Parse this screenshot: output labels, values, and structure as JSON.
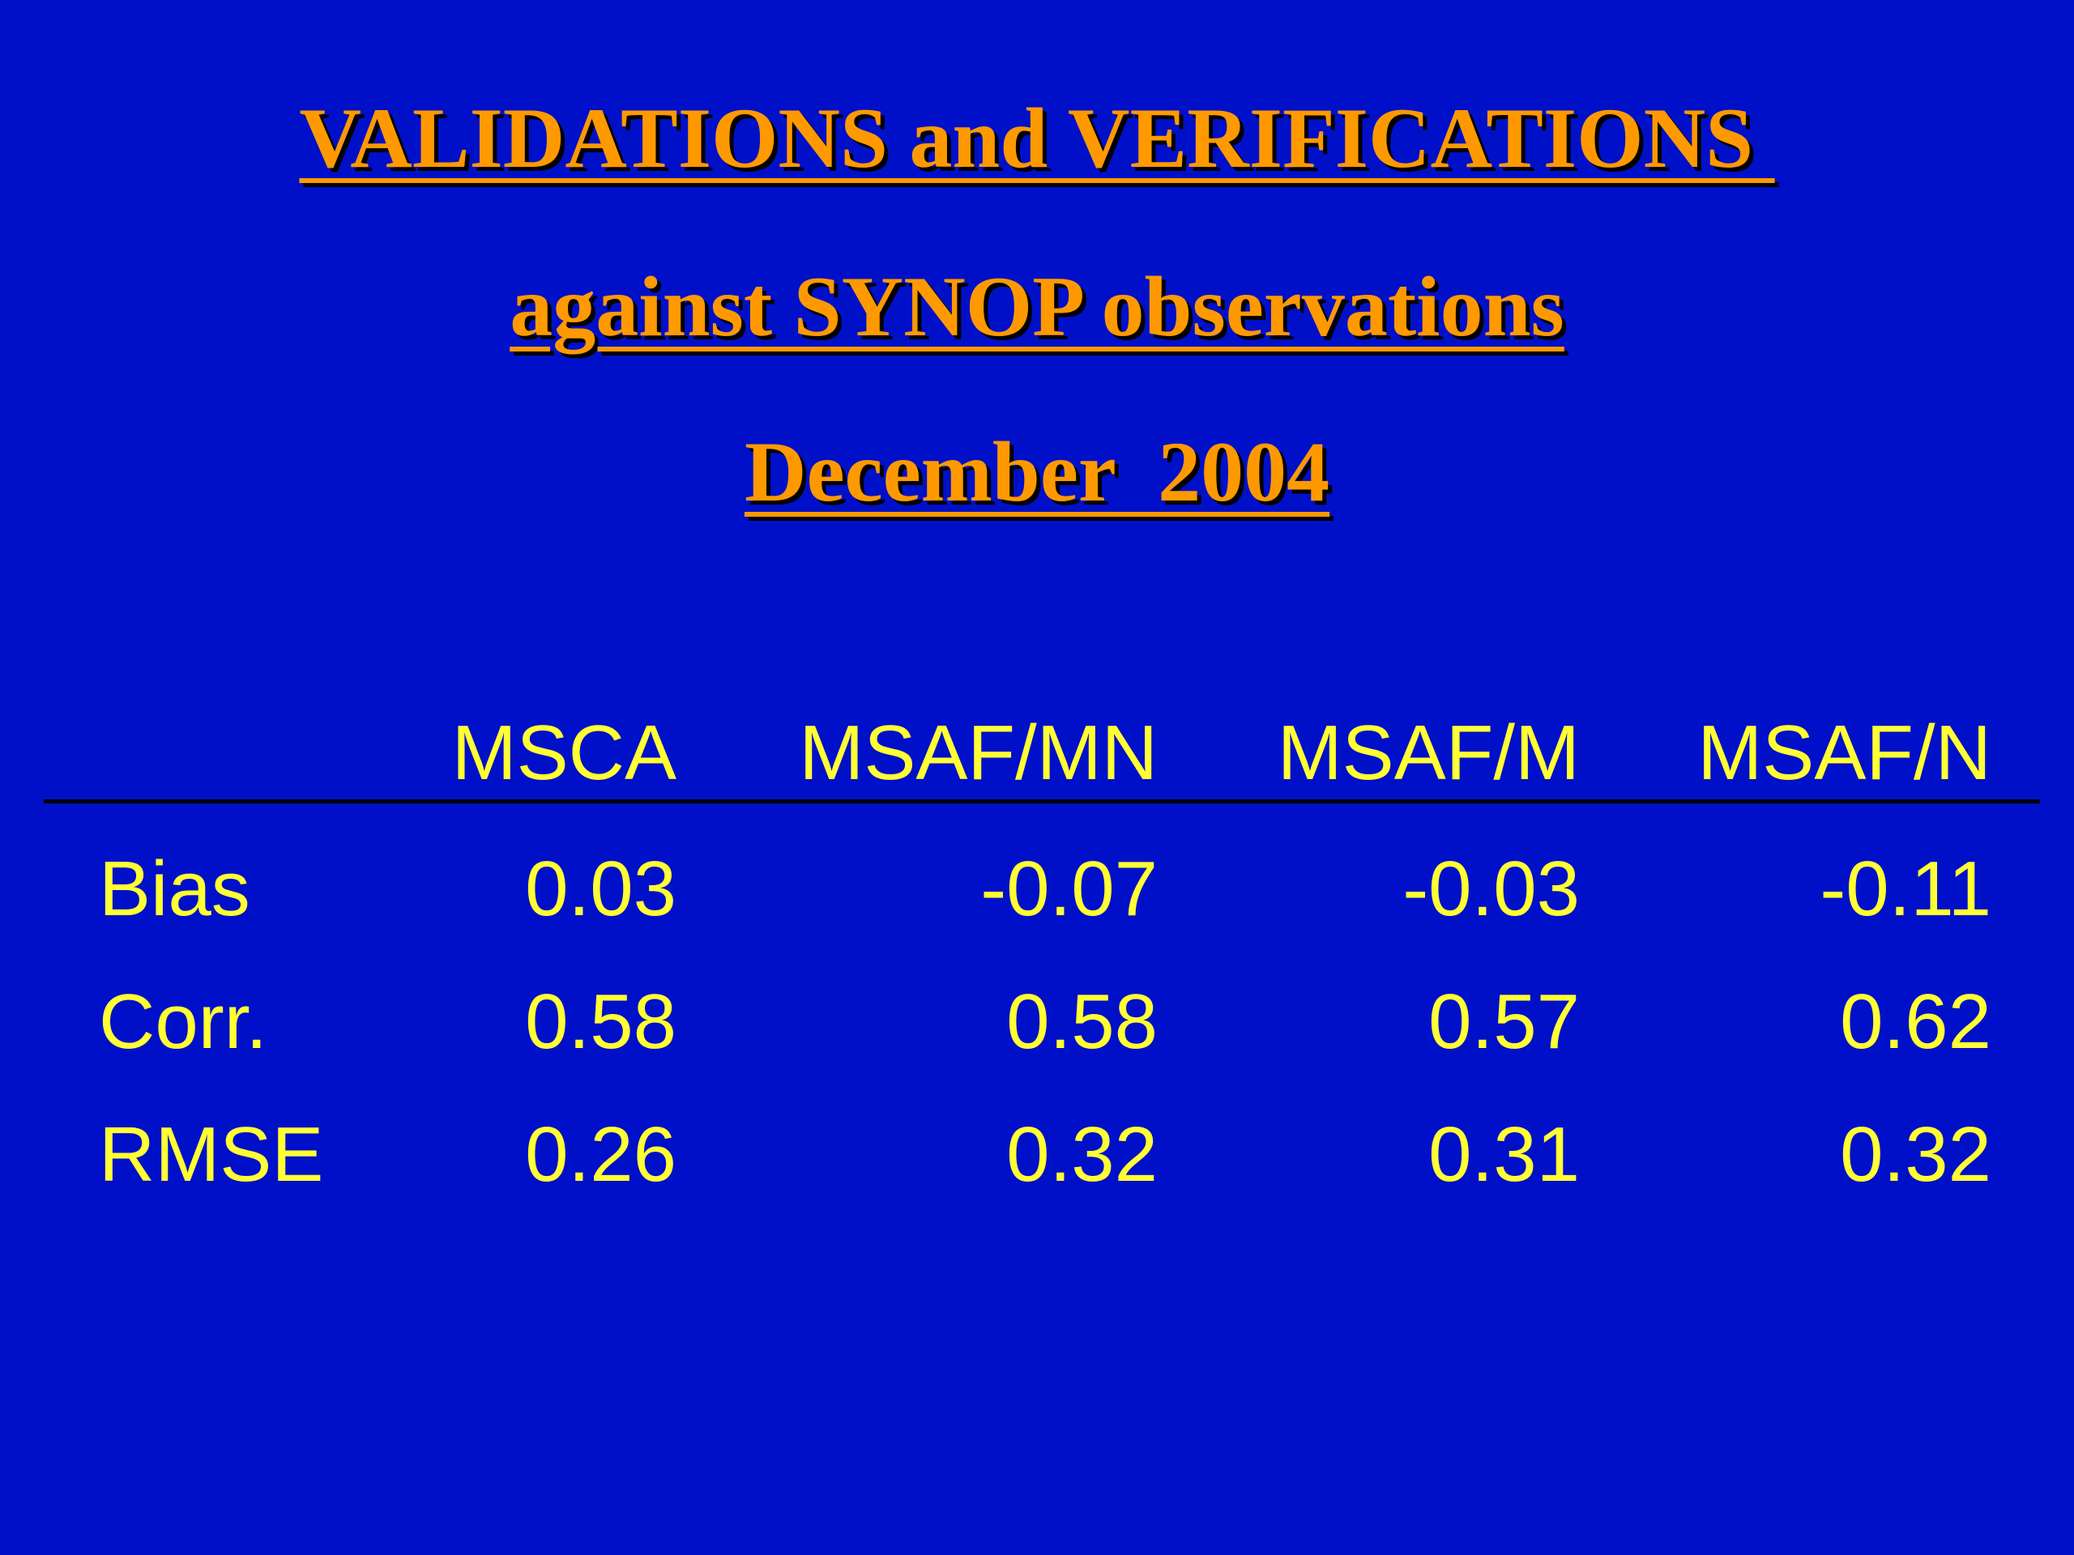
{
  "title": {
    "line1": "VALIDATIONS and VERIFICATIONS ",
    "line2": "against SYNOP observations",
    "line3": "December  2004"
  },
  "table": {
    "columns": [
      "MSCA",
      "MSAF/MN",
      "MSAF/M",
      "MSAF/N"
    ],
    "rows": [
      {
        "label": "Bias",
        "values": [
          "0.03",
          "-0.07",
          "-0.03",
          "-0.11"
        ]
      },
      {
        "label": "Corr.",
        "values": [
          "0.58",
          "0.58",
          "0.57",
          "0.62"
        ]
      },
      {
        "label": "RMSE",
        "values": [
          "0.26",
          "0.32",
          "0.31",
          "0.32"
        ]
      }
    ]
  },
  "colors": {
    "background": "#0010c8",
    "title": "#ff9900",
    "table_text": "#ffff33",
    "rule": "#000000"
  }
}
